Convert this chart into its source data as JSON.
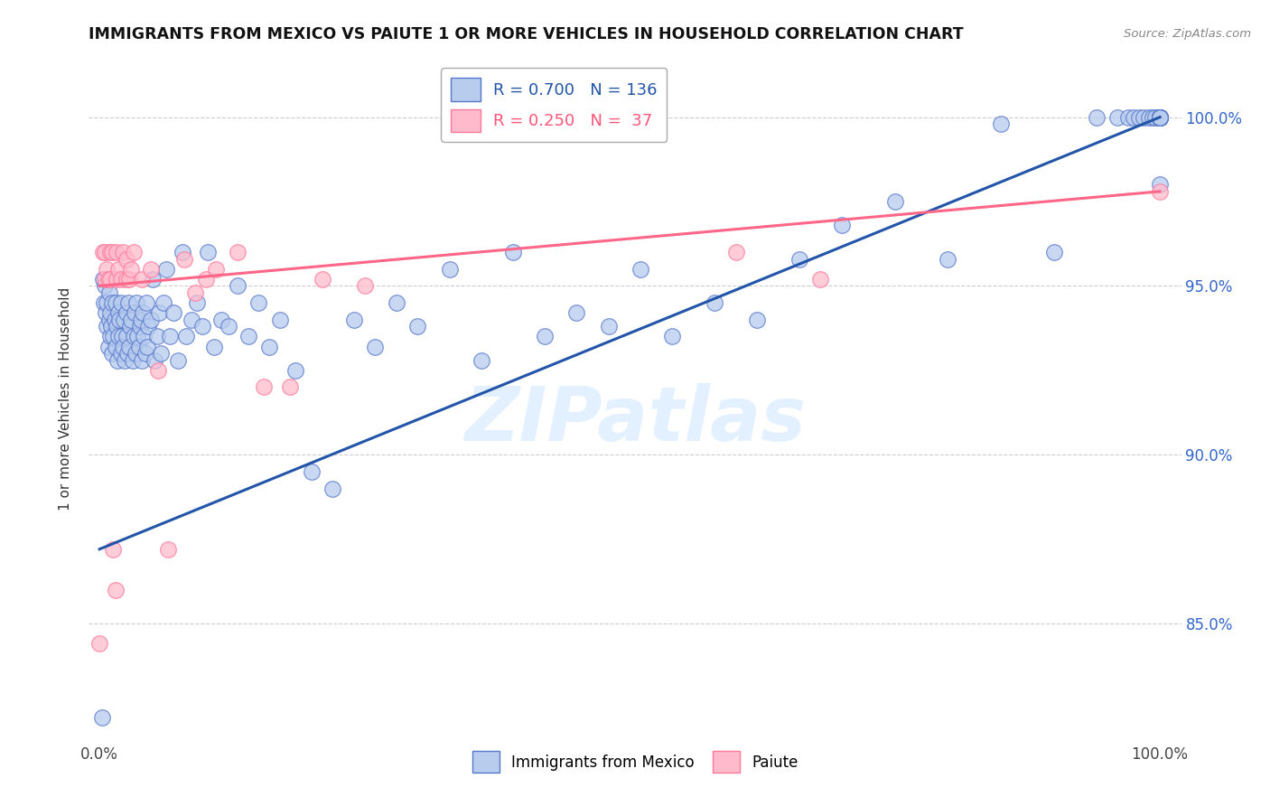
{
  "title": "IMMIGRANTS FROM MEXICO VS PAIUTE 1 OR MORE VEHICLES IN HOUSEHOLD CORRELATION CHART",
  "source": "Source: ZipAtlas.com",
  "ylabel": "1 or more Vehicles in Household",
  "legend_blue_r": "0.700",
  "legend_blue_n": "136",
  "legend_pink_r": "0.250",
  "legend_pink_n": " 37",
  "legend_label_blue": "Immigrants from Mexico",
  "legend_label_pink": "Paiute",
  "blue_face_color": "#B8CCEE",
  "blue_edge_color": "#5577CC",
  "pink_face_color": "#FFBBCC",
  "pink_edge_color": "#FF7799",
  "blue_line_color": "#2255AA",
  "pink_line_color": "#FF6688",
  "watermark": "ZIPatlas",
  "blue_trend_x": [
    0.0,
    1.0
  ],
  "blue_trend_y": [
    0.872,
    1.0
  ],
  "pink_trend_x": [
    0.0,
    1.0
  ],
  "pink_trend_y": [
    0.95,
    0.978
  ],
  "xmin": -0.01,
  "xmax": 1.02,
  "ymin": 0.815,
  "ymax": 1.018,
  "ytick_positions": [
    0.85,
    0.9,
    0.95,
    1.0
  ],
  "ytick_labels": [
    "85.0%",
    "90.0%",
    "95.0%",
    "100.0%"
  ],
  "blue_x": [
    0.002,
    0.003,
    0.004,
    0.005,
    0.006,
    0.007,
    0.007,
    0.008,
    0.009,
    0.009,
    0.01,
    0.01,
    0.011,
    0.012,
    0.012,
    0.013,
    0.014,
    0.015,
    0.015,
    0.016,
    0.017,
    0.018,
    0.018,
    0.019,
    0.02,
    0.02,
    0.021,
    0.022,
    0.023,
    0.024,
    0.025,
    0.025,
    0.026,
    0.027,
    0.028,
    0.029,
    0.03,
    0.031,
    0.032,
    0.033,
    0.034,
    0.035,
    0.036,
    0.037,
    0.038,
    0.039,
    0.04,
    0.041,
    0.042,
    0.043,
    0.044,
    0.045,
    0.046,
    0.048,
    0.05,
    0.052,
    0.054,
    0.056,
    0.058,
    0.06,
    0.063,
    0.066,
    0.07,
    0.074,
    0.078,
    0.082,
    0.087,
    0.092,
    0.097,
    0.102,
    0.108,
    0.115,
    0.122,
    0.13,
    0.14,
    0.15,
    0.16,
    0.17,
    0.185,
    0.2,
    0.22,
    0.24,
    0.26,
    0.28,
    0.3,
    0.33,
    0.36,
    0.39,
    0.42,
    0.45,
    0.48,
    0.51,
    0.54,
    0.58,
    0.62,
    0.66,
    0.7,
    0.75,
    0.8,
    0.85,
    0.9,
    0.94,
    0.96,
    0.97,
    0.975,
    0.98,
    0.985,
    0.99,
    0.993,
    0.996,
    1.0,
    1.0,
    1.0,
    1.0,
    1.0,
    1.0,
    1.0,
    1.0,
    1.0,
    1.0,
    1.0,
    1.0,
    1.0,
    1.0,
    1.0,
    1.0,
    1.0,
    1.0,
    1.0,
    1.0,
    1.0,
    1.0,
    1.0,
    1.0,
    1.0,
    1.0
  ],
  "blue_y": [
    0.822,
    0.952,
    0.945,
    0.95,
    0.942,
    0.938,
    0.945,
    0.932,
    0.94,
    0.948,
    0.935,
    0.942,
    0.938,
    0.93,
    0.945,
    0.935,
    0.94,
    0.932,
    0.945,
    0.938,
    0.928,
    0.942,
    0.935,
    0.94,
    0.93,
    0.945,
    0.935,
    0.932,
    0.94,
    0.928,
    0.942,
    0.935,
    0.93,
    0.945,
    0.932,
    0.938,
    0.94,
    0.928,
    0.935,
    0.942,
    0.93,
    0.945,
    0.935,
    0.932,
    0.938,
    0.94,
    0.928,
    0.942,
    0.935,
    0.93,
    0.945,
    0.932,
    0.938,
    0.94,
    0.952,
    0.928,
    0.935,
    0.942,
    0.93,
    0.945,
    0.955,
    0.935,
    0.942,
    0.928,
    0.96,
    0.935,
    0.94,
    0.945,
    0.938,
    0.96,
    0.932,
    0.94,
    0.938,
    0.95,
    0.935,
    0.945,
    0.932,
    0.94,
    0.925,
    0.895,
    0.89,
    0.94,
    0.932,
    0.945,
    0.938,
    0.955,
    0.928,
    0.96,
    0.935,
    0.942,
    0.938,
    0.955,
    0.935,
    0.945,
    0.94,
    0.958,
    0.968,
    0.975,
    0.958,
    0.998,
    0.96,
    1.0,
    1.0,
    1.0,
    1.0,
    1.0,
    1.0,
    1.0,
    1.0,
    1.0,
    1.0,
    1.0,
    1.0,
    1.0,
    1.0,
    1.0,
    1.0,
    1.0,
    1.0,
    1.0,
    1.0,
    1.0,
    1.0,
    1.0,
    1.0,
    1.0,
    1.0,
    1.0,
    1.0,
    1.0,
    1.0,
    1.0,
    1.0,
    0.98,
    1.0,
    1.0
  ],
  "pink_x": [
    0.0,
    0.003,
    0.005,
    0.005,
    0.007,
    0.008,
    0.01,
    0.01,
    0.012,
    0.013,
    0.015,
    0.016,
    0.016,
    0.018,
    0.02,
    0.022,
    0.025,
    0.025,
    0.028,
    0.03,
    0.032,
    0.04,
    0.048,
    0.055,
    0.065,
    0.08,
    0.09,
    0.1,
    0.11,
    0.13,
    0.155,
    0.18,
    0.21,
    0.25,
    0.6,
    0.68,
    1.0
  ],
  "pink_y": [
    0.844,
    0.96,
    0.952,
    0.96,
    0.955,
    0.952,
    0.96,
    0.952,
    0.96,
    0.872,
    0.86,
    0.952,
    0.96,
    0.955,
    0.952,
    0.96,
    0.952,
    0.958,
    0.952,
    0.955,
    0.96,
    0.952,
    0.955,
    0.925,
    0.872,
    0.958,
    0.948,
    0.952,
    0.955,
    0.96,
    0.92,
    0.92,
    0.952,
    0.95,
    0.96,
    0.952,
    0.978
  ]
}
